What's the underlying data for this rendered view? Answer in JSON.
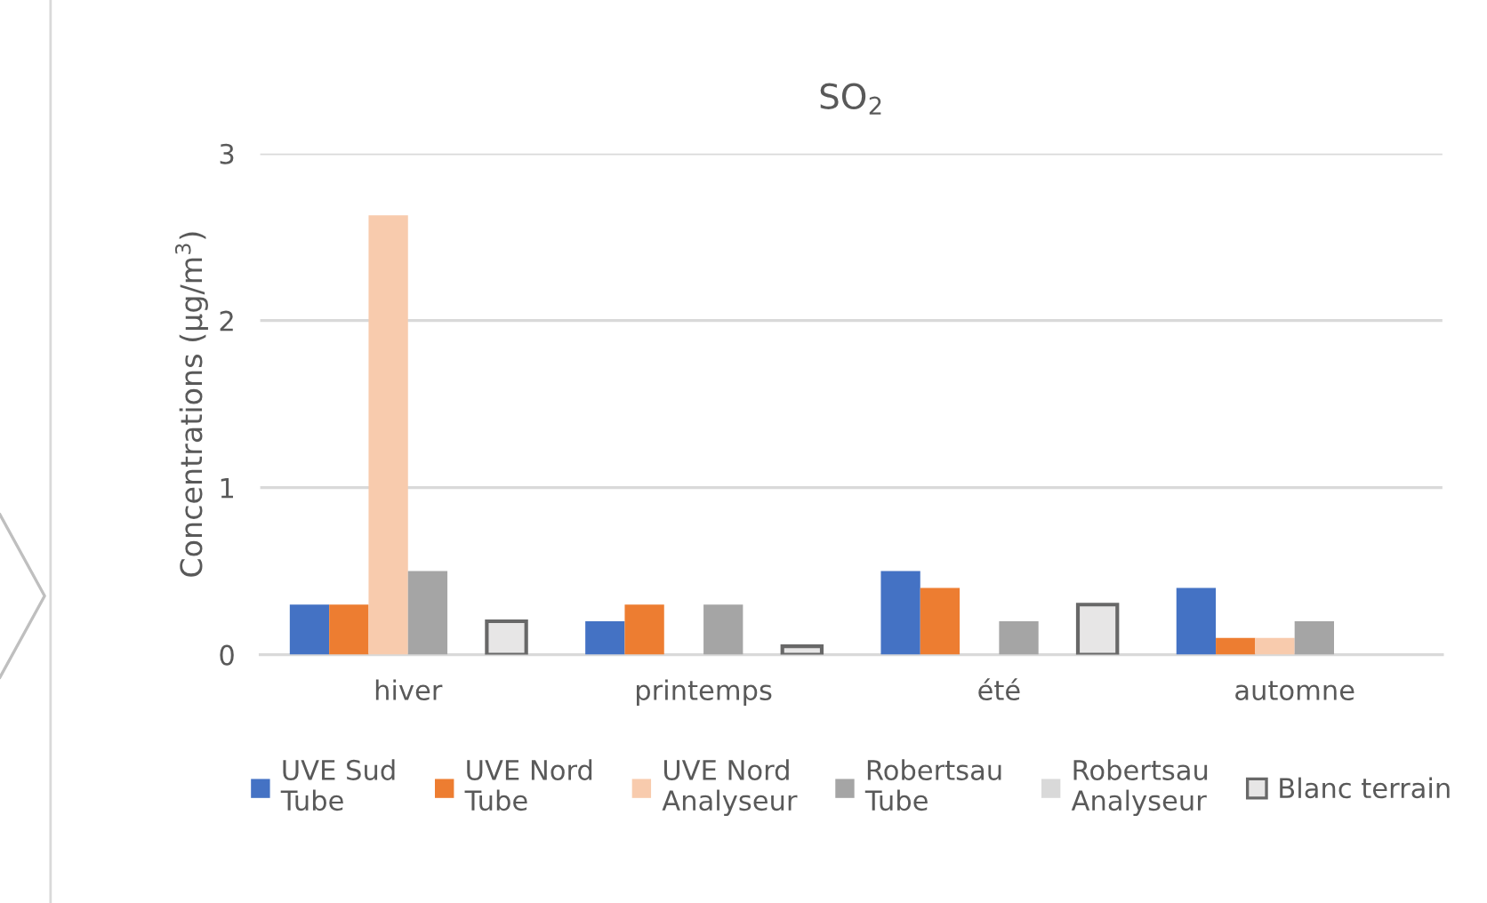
{
  "chart_data": {
    "type": "bar",
    "title": "SO$_{2}$",
    "ylabel": "Concentrations (µg/m$^{3}$)",
    "categories": [
      "hiver",
      "printemps",
      "été",
      "automne"
    ],
    "series": [
      {
        "name": "UVE Sud\nTube",
        "color": "#4472c4",
        "values": [
          0.3,
          0.2,
          0.5,
          0.4
        ]
      },
      {
        "name": "UVE Nord\nTube",
        "color": "#ed7d31",
        "values": [
          0.3,
          0.3,
          0.4,
          0.1
        ]
      },
      {
        "name": "UVE Nord\nAnalyseur",
        "color": "#f8cbad",
        "values": [
          2.63,
          null,
          null,
          0.1
        ]
      },
      {
        "name": "Robertsau\nTube",
        "color": "#a5a5a5",
        "values": [
          0.5,
          0.3,
          0.2,
          0.2
        ]
      },
      {
        "name": "Robertsau\nAnalyseur",
        "color": "#d9d9d9",
        "values": [
          null,
          null,
          null,
          null
        ]
      },
      {
        "name": "Blanc terrain",
        "color": "#e7e6e6",
        "values": [
          0.2,
          0.05,
          0.3,
          null
        ]
      }
    ],
    "ylim": [
      0,
      3
    ],
    "yticks": [
      0,
      1,
      2,
      3
    ],
    "grid": "y",
    "legend": "bottom"
  }
}
